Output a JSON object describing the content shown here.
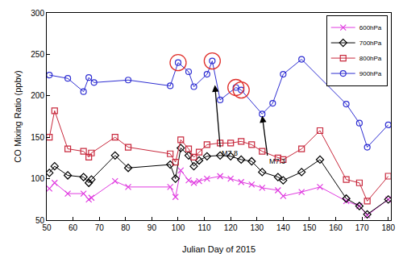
{
  "chart_data": {
    "type": "line",
    "x_label": "Julian Day of 2015",
    "y_label": "CO Mixing Ratio (ppbv)",
    "xlim": [
      50,
      181
    ],
    "xticks": [
      50,
      60,
      70,
      80,
      90,
      100,
      110,
      120,
      130,
      140,
      150,
      160,
      170,
      180
    ],
    "ylim": [
      50,
      300
    ],
    "yticks": [
      50,
      100,
      150,
      200,
      250,
      300
    ],
    "grid": false,
    "legend": "top right",
    "series": [
      {
        "name": "600hPa",
        "color": "#e03ce0",
        "marker": "x-thin-open",
        "x": [
          51,
          53,
          58,
          64,
          66,
          67,
          76,
          81,
          97,
          99,
          101,
          104,
          106,
          108,
          111,
          116,
          120,
          124,
          128,
          132,
          138,
          140,
          147,
          154,
          164,
          169,
          172,
          180
        ],
        "values": [
          88,
          95,
          82,
          82,
          75,
          77,
          97,
          90,
          90,
          78,
          110,
          98,
          95,
          97,
          100,
          103,
          100,
          96,
          93,
          89,
          86,
          79,
          84,
          90,
          73,
          67,
          56,
          75
        ]
      },
      {
        "name": "700hPa",
        "color": "#000000",
        "marker": "diamond-open",
        "x": [
          51,
          53,
          58,
          64,
          66,
          67,
          76,
          81,
          97,
          99,
          101,
          104,
          106,
          108,
          111,
          116,
          120,
          124,
          128,
          132,
          138,
          140,
          147,
          154,
          164,
          169,
          172,
          180
        ],
        "values": [
          107,
          115,
          104,
          102,
          95,
          99,
          128,
          113,
          117,
          100,
          137,
          128,
          115,
          122,
          127,
          128,
          127,
          123,
          121,
          108,
          102,
          98,
          108,
          123,
          76,
          67,
          57,
          75
        ]
      },
      {
        "name": "800hPa",
        "color": "#c8283c",
        "marker": "square-open",
        "x": [
          51,
          53,
          58,
          64,
          66,
          67,
          76,
          81,
          97,
          99,
          101,
          104,
          106,
          108,
          111,
          116,
          120,
          124,
          128,
          132,
          138,
          140,
          147,
          154,
          164,
          169,
          172,
          180
        ],
        "values": [
          150,
          182,
          136,
          133,
          126,
          131,
          150,
          138,
          130,
          120,
          147,
          136,
          126,
          132,
          141,
          143,
          143,
          145,
          141,
          133,
          125,
          123,
          136,
          158,
          99,
          95,
          73,
          103
        ]
      },
      {
        "name": "900hPa",
        "color": "#2e2ed2",
        "marker": "circle-open",
        "x": [
          51,
          58,
          64,
          66,
          68,
          81,
          97,
          100,
          104,
          106,
          111,
          113,
          116,
          122,
          124,
          132,
          136,
          140,
          147,
          164,
          169,
          172,
          180
        ],
        "values": [
          225,
          221,
          205,
          222,
          216,
          219,
          212,
          240,
          229,
          211,
          226,
          242,
          195,
          210,
          207,
          178,
          191,
          226,
          244,
          190,
          167,
          138,
          165
        ]
      }
    ],
    "circled_points": {
      "color": "#e0302c",
      "x": [
        100,
        113,
        122,
        124
      ],
      "values": [
        240,
        242,
        210,
        207
      ]
    },
    "annotations": [
      {
        "text": "M7.8",
        "x": 114,
        "y": 213,
        "text_x": 116,
        "text_y": 138
      },
      {
        "text": "M7.3",
        "x": 132,
        "y": 176,
        "text_x": 134,
        "text_y": 128
      }
    ]
  }
}
